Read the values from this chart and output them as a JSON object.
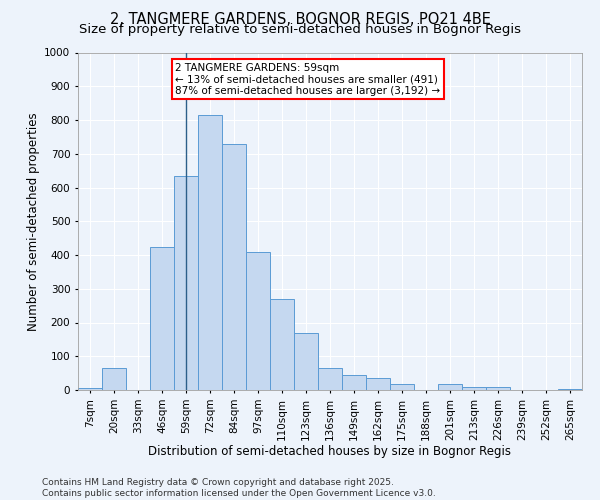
{
  "title": "2, TANGMERE GARDENS, BOGNOR REGIS, PO21 4BE",
  "subtitle": "Size of property relative to semi-detached houses in Bognor Regis",
  "xlabel": "Distribution of semi-detached houses by size in Bognor Regis",
  "ylabel": "Number of semi-detached properties",
  "categories": [
    "7sqm",
    "20sqm",
    "33sqm",
    "46sqm",
    "59sqm",
    "72sqm",
    "84sqm",
    "97sqm",
    "110sqm",
    "123sqm",
    "136sqm",
    "149sqm",
    "162sqm",
    "175sqm",
    "188sqm",
    "201sqm",
    "213sqm",
    "226sqm",
    "239sqm",
    "252sqm",
    "265sqm"
  ],
  "values": [
    7,
    65,
    0,
    425,
    635,
    815,
    730,
    410,
    270,
    170,
    65,
    45,
    35,
    18,
    0,
    18,
    8,
    8,
    0,
    0,
    3
  ],
  "bar_color": "#c5d8f0",
  "bar_edge_color": "#5b9bd5",
  "annotation_line1": "2 TANGMERE GARDENS: 59sqm",
  "annotation_line2": "← 13% of semi-detached houses are smaller (491)",
  "annotation_line3": "87% of semi-detached houses are larger (3,192) →",
  "vline_index": 4,
  "ylim": [
    0,
    1000
  ],
  "yticks": [
    0,
    100,
    200,
    300,
    400,
    500,
    600,
    700,
    800,
    900,
    1000
  ],
  "footnote_line1": "Contains HM Land Registry data © Crown copyright and database right 2025.",
  "footnote_line2": "Contains public sector information licensed under the Open Government Licence v3.0.",
  "bg_color": "#edf3fb",
  "grid_color": "#ffffff",
  "title_fontsize": 10.5,
  "subtitle_fontsize": 9.5,
  "axis_label_fontsize": 8.5,
  "tick_fontsize": 7.5,
  "annotation_fontsize": 7.5,
  "footnote_fontsize": 6.5
}
